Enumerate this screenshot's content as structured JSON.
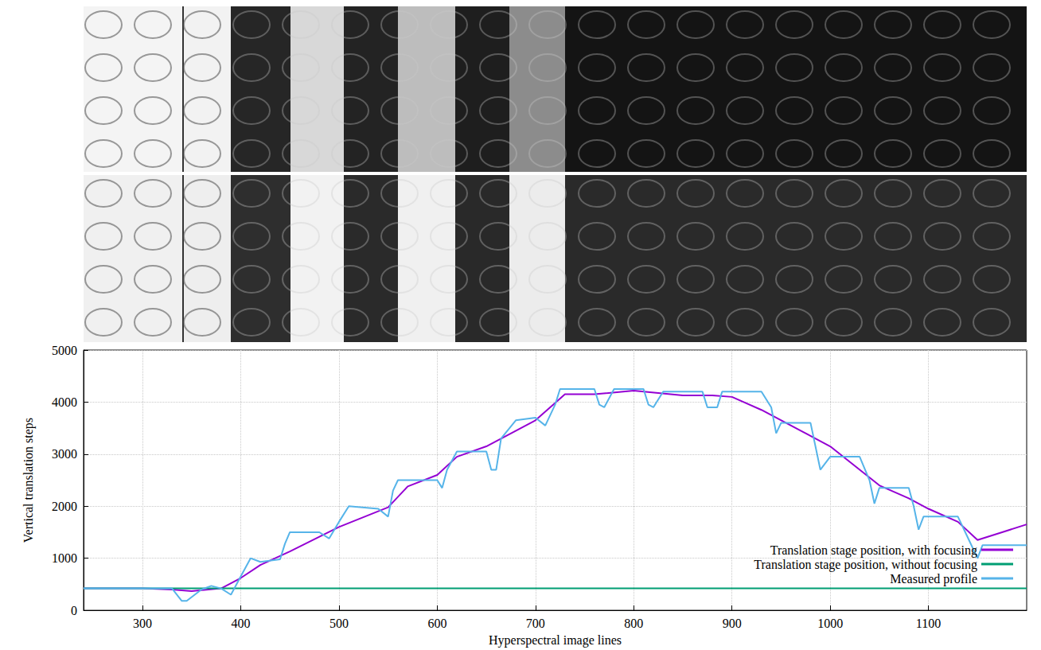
{
  "chart_data": {
    "type": "line",
    "xlabel": "Hyperspectral image lines",
    "ylabel": "Vertical translation steps",
    "xlim": [
      240,
      1200
    ],
    "xticks": [
      300,
      400,
      500,
      600,
      700,
      800,
      900,
      1000,
      1100
    ],
    "ylim": [
      0,
      5000
    ],
    "yticks": [
      0,
      1000,
      2000,
      3000,
      4000,
      5000
    ],
    "grid": true,
    "legend": "lower right",
    "series": [
      {
        "name": "Translation stage position, with focusing",
        "color": "#9400d3",
        "x": [
          240,
          300,
          330,
          350,
          380,
          400,
          420,
          450,
          500,
          550,
          570,
          600,
          620,
          650,
          700,
          730,
          760,
          800,
          850,
          880,
          900,
          930,
          970,
          1000,
          1050,
          1080,
          1100,
          1130,
          1150,
          1175,
          1200
        ],
        "values": [
          420,
          420,
          400,
          370,
          420,
          620,
          870,
          1130,
          1600,
          1980,
          2380,
          2600,
          2950,
          3150,
          3650,
          4150,
          4150,
          4220,
          4130,
          4130,
          4100,
          3850,
          3450,
          3150,
          2400,
          2150,
          1950,
          1700,
          1350,
          1500,
          1650
        ]
      },
      {
        "name": "Translation stage position, without focusing",
        "color": "#009e73",
        "x": [
          240,
          1200
        ],
        "values": [
          420,
          420
        ]
      },
      {
        "name": "Measured profile",
        "color": "#56b4e9",
        "x": [
          240,
          330,
          340,
          345,
          360,
          370,
          380,
          390,
          400,
          410,
          420,
          440,
          445,
          450,
          480,
          490,
          500,
          510,
          540,
          550,
          555,
          560,
          600,
          605,
          610,
          620,
          650,
          655,
          660,
          665,
          680,
          700,
          710,
          720,
          725,
          760,
          765,
          770,
          780,
          810,
          815,
          820,
          830,
          870,
          875,
          885,
          890,
          930,
          940,
          945,
          950,
          980,
          990,
          1000,
          1030,
          1040,
          1045,
          1050,
          1080,
          1085,
          1090,
          1095,
          1130,
          1140,
          1150,
          1155,
          1200
        ],
        "values": [
          420,
          420,
          180,
          180,
          400,
          470,
          420,
          300,
          650,
          1000,
          930,
          980,
          1280,
          1500,
          1500,
          1380,
          1700,
          2000,
          1950,
          1800,
          2300,
          2500,
          2500,
          2350,
          2700,
          3050,
          3050,
          2700,
          2700,
          3300,
          3650,
          3700,
          3550,
          3950,
          4250,
          4250,
          3950,
          3900,
          4250,
          4250,
          3950,
          3900,
          4200,
          4200,
          3900,
          3900,
          4200,
          4200,
          3900,
          3400,
          3600,
          3600,
          2700,
          2950,
          2950,
          2500,
          2050,
          2350,
          2350,
          2000,
          1550,
          1800,
          1800,
          1400,
          1000,
          1250,
          1250
        ]
      }
    ]
  }
}
